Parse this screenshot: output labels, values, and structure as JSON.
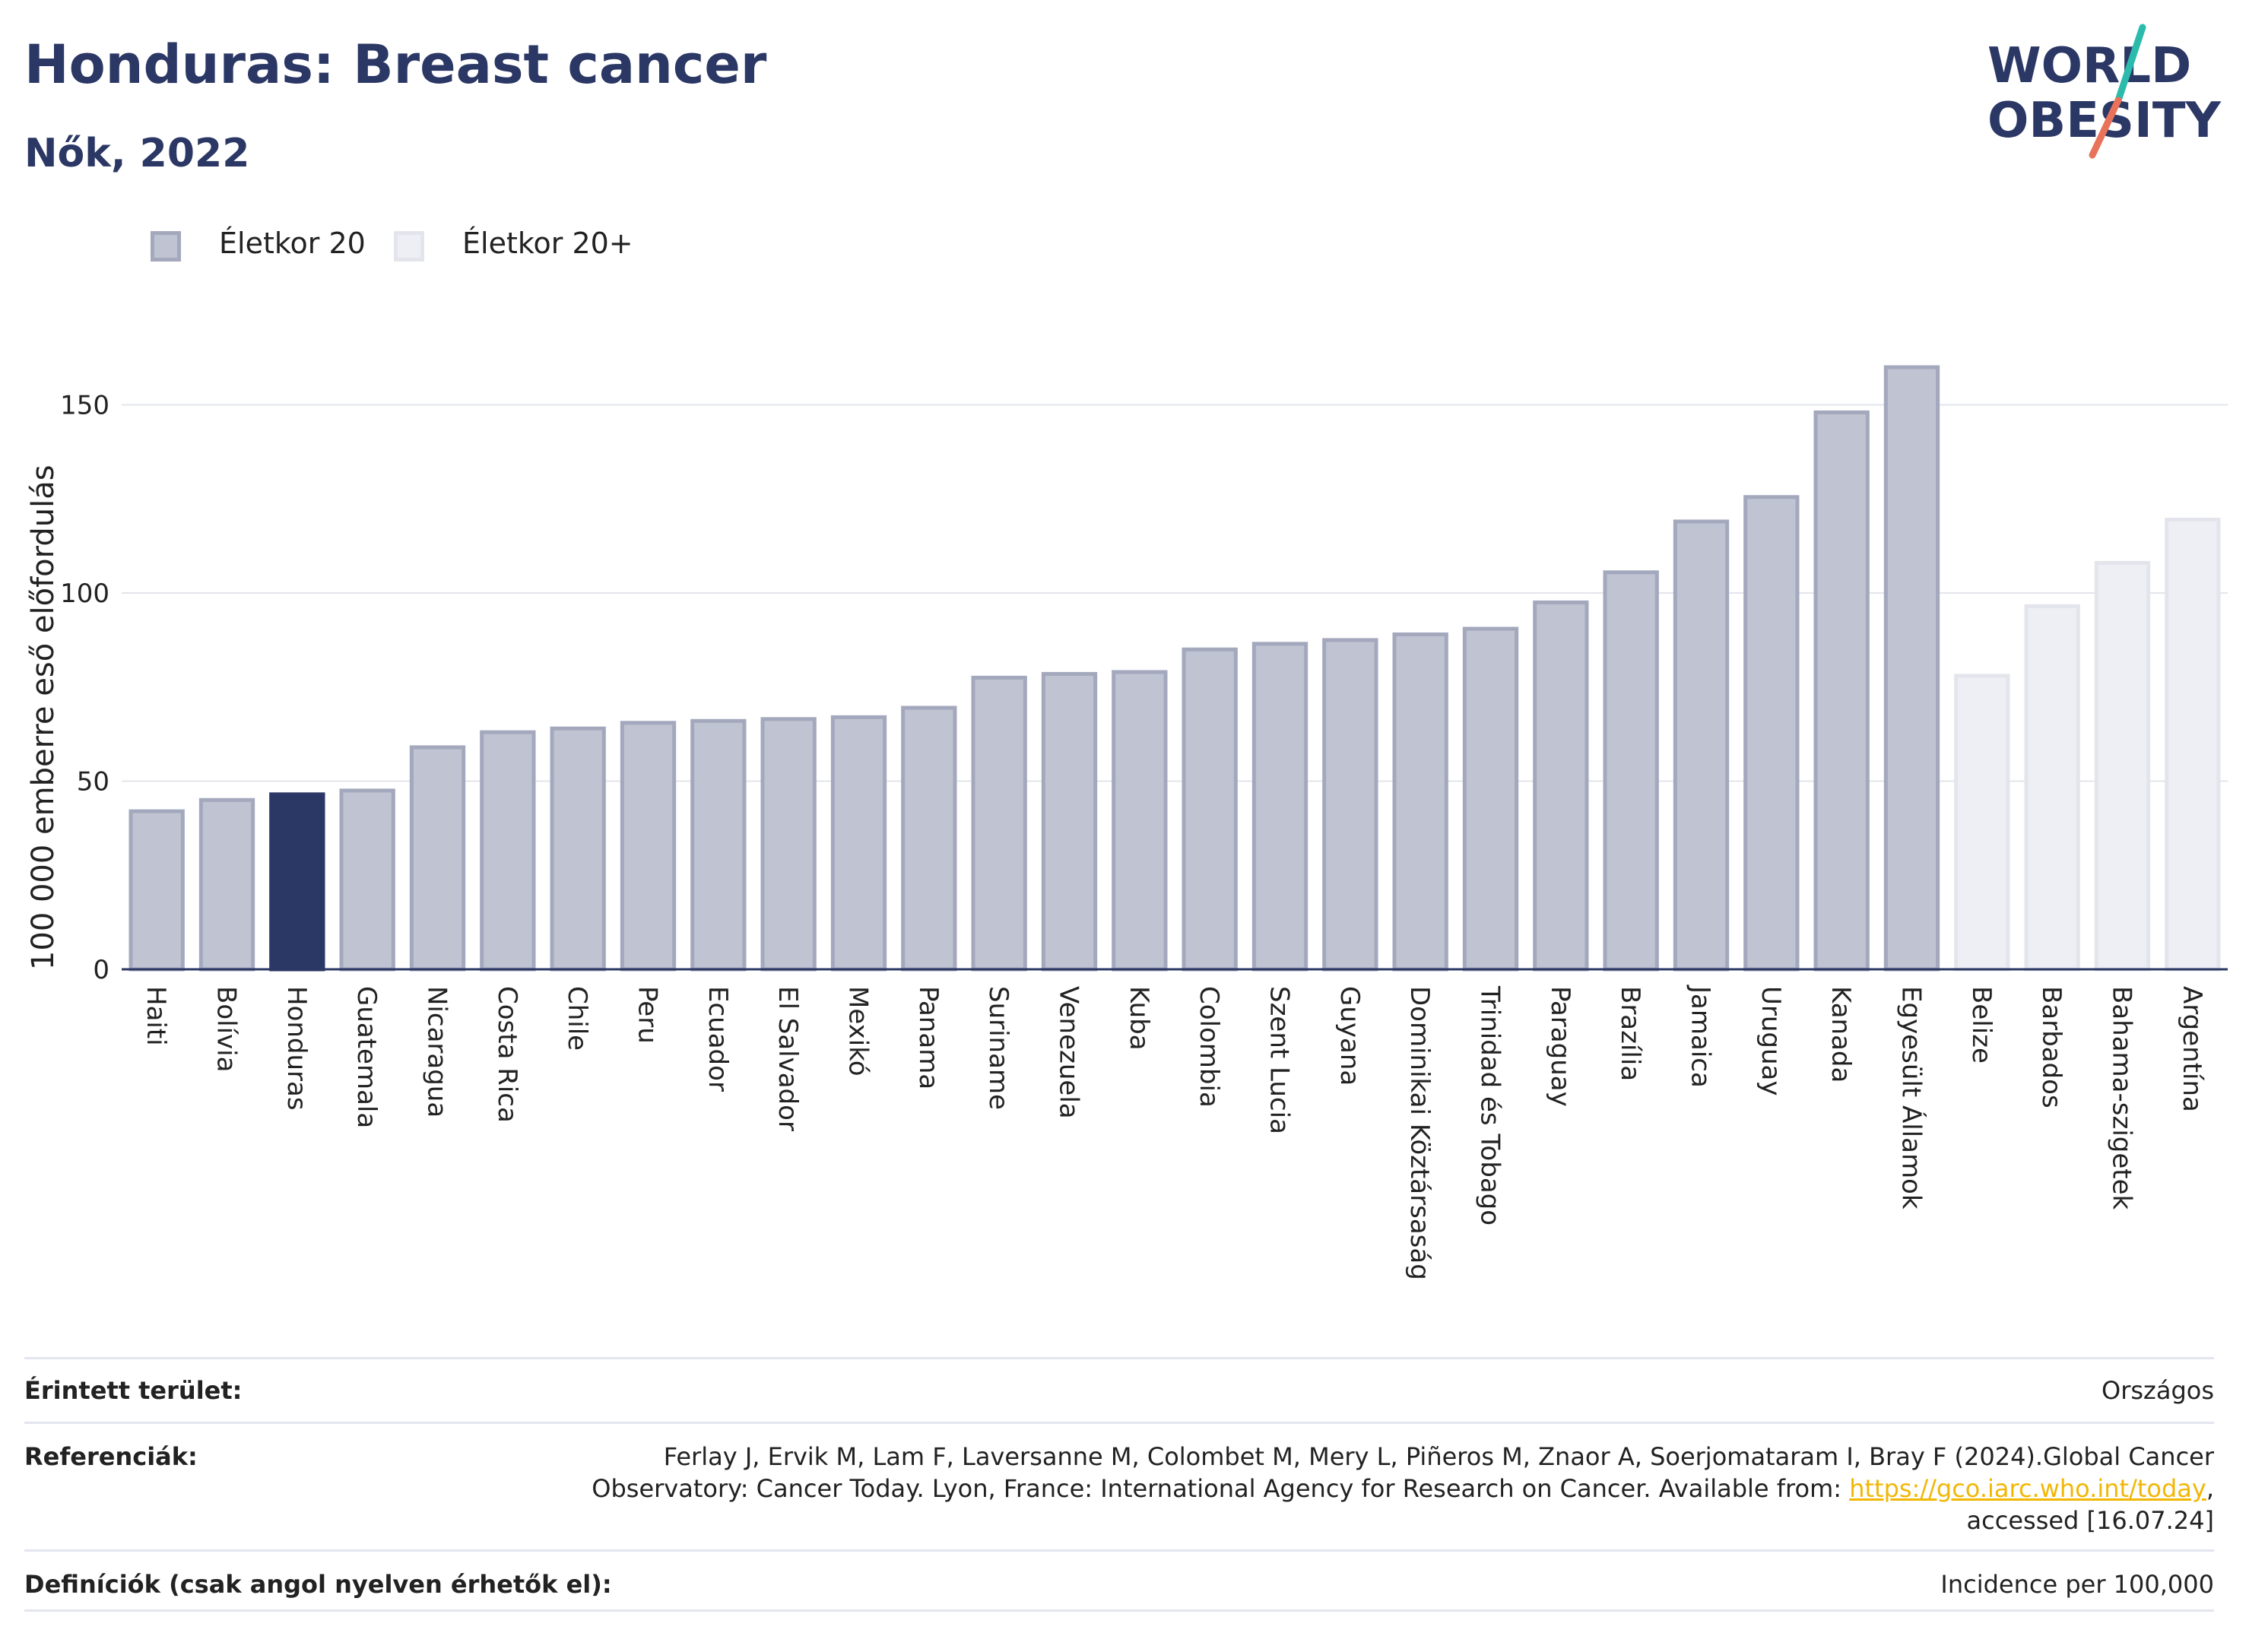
{
  "header": {
    "title": "Honduras: Breast cancer",
    "subtitle": "Nők, 2022"
  },
  "logo": {
    "line1": "WORLD",
    "line2": "OBESITY",
    "accent_colors": [
      "#2bbbad",
      "#e8735a"
    ]
  },
  "legend": [
    {
      "label": "Életkor 20",
      "color": "#a3a8bd"
    },
    {
      "label": "Életkor 20+",
      "color": "#e4e5ec"
    }
  ],
  "chart_data": {
    "type": "bar",
    "ylabel": "100 000 emberre eső előfordulás",
    "ylim": [
      0,
      170
    ],
    "yticks": [
      0,
      50,
      100,
      150
    ],
    "grid": true,
    "legend_position": "top-left",
    "highlight": "Honduras",
    "colors": {
      "highlight": "#2b3764",
      "age20_fill": "#c0c3d1",
      "age20_border": "#a3a8bd",
      "age20plus_fill": "#eeeff4",
      "age20plus_border": "#e4e5ec"
    },
    "categories": [
      "Haiti",
      "Bolívia",
      "Honduras",
      "Guatemala",
      "Nicaragua",
      "Costa Rica",
      "Chile",
      "Peru",
      "Ecuador",
      "El Salvador",
      "Mexikó",
      "Panama",
      "Suriname",
      "Venezuela",
      "Kuba",
      "Colombia",
      "Szent Lucia",
      "Guyana",
      "Dominikai Köztársaság",
      "Trinidad és Tobago",
      "Paraguay",
      "Brazília",
      "Jamaica",
      "Uruguay",
      "Kanada",
      "Egyesült Államok",
      "Belize",
      "Barbados",
      "Bahama-szigetek",
      "Argentína"
    ],
    "values": [
      42,
      45,
      46.5,
      47.5,
      59,
      63,
      64,
      65.5,
      66,
      66.5,
      67,
      69.5,
      77.5,
      78.5,
      79,
      85,
      86.5,
      87.5,
      89,
      90.5,
      97.5,
      105.5,
      119,
      125.5,
      148,
      160,
      78,
      96.5,
      108,
      119.5
    ],
    "groups": [
      "Életkor 20",
      "Életkor 20",
      "Életkor 20",
      "Életkor 20",
      "Életkor 20",
      "Életkor 20",
      "Életkor 20",
      "Életkor 20",
      "Életkor 20",
      "Életkor 20",
      "Életkor 20",
      "Életkor 20",
      "Életkor 20",
      "Életkor 20",
      "Életkor 20",
      "Életkor 20",
      "Életkor 20",
      "Életkor 20",
      "Életkor 20",
      "Életkor 20",
      "Életkor 20",
      "Életkor 20",
      "Életkor 20",
      "Életkor 20",
      "Életkor 20",
      "Életkor 20",
      "Életkor 20+",
      "Életkor 20+",
      "Életkor 20+",
      "Életkor 20+"
    ]
  },
  "footer": {
    "area_label": "Érintett terület:",
    "area_value": "Országos",
    "ref_label": "Referenciák:",
    "ref_text_1": "Ferlay J, Ervik M, Lam F, Laversanne M, Colombet M, Mery L, Piñeros M, Znaor A, Soerjomataram I, Bray F (2024).Global Cancer Observatory: Cancer Today. Lyon, France: International Agency for Research on Cancer. Available from: ",
    "ref_link": "https://gco.iarc.who.int/today",
    "ref_text_2": ", accessed [16.07.24]",
    "def_label": "Definíciók (csak angol nyelven érhetők el):",
    "def_value": "Incidence per 100,000"
  }
}
